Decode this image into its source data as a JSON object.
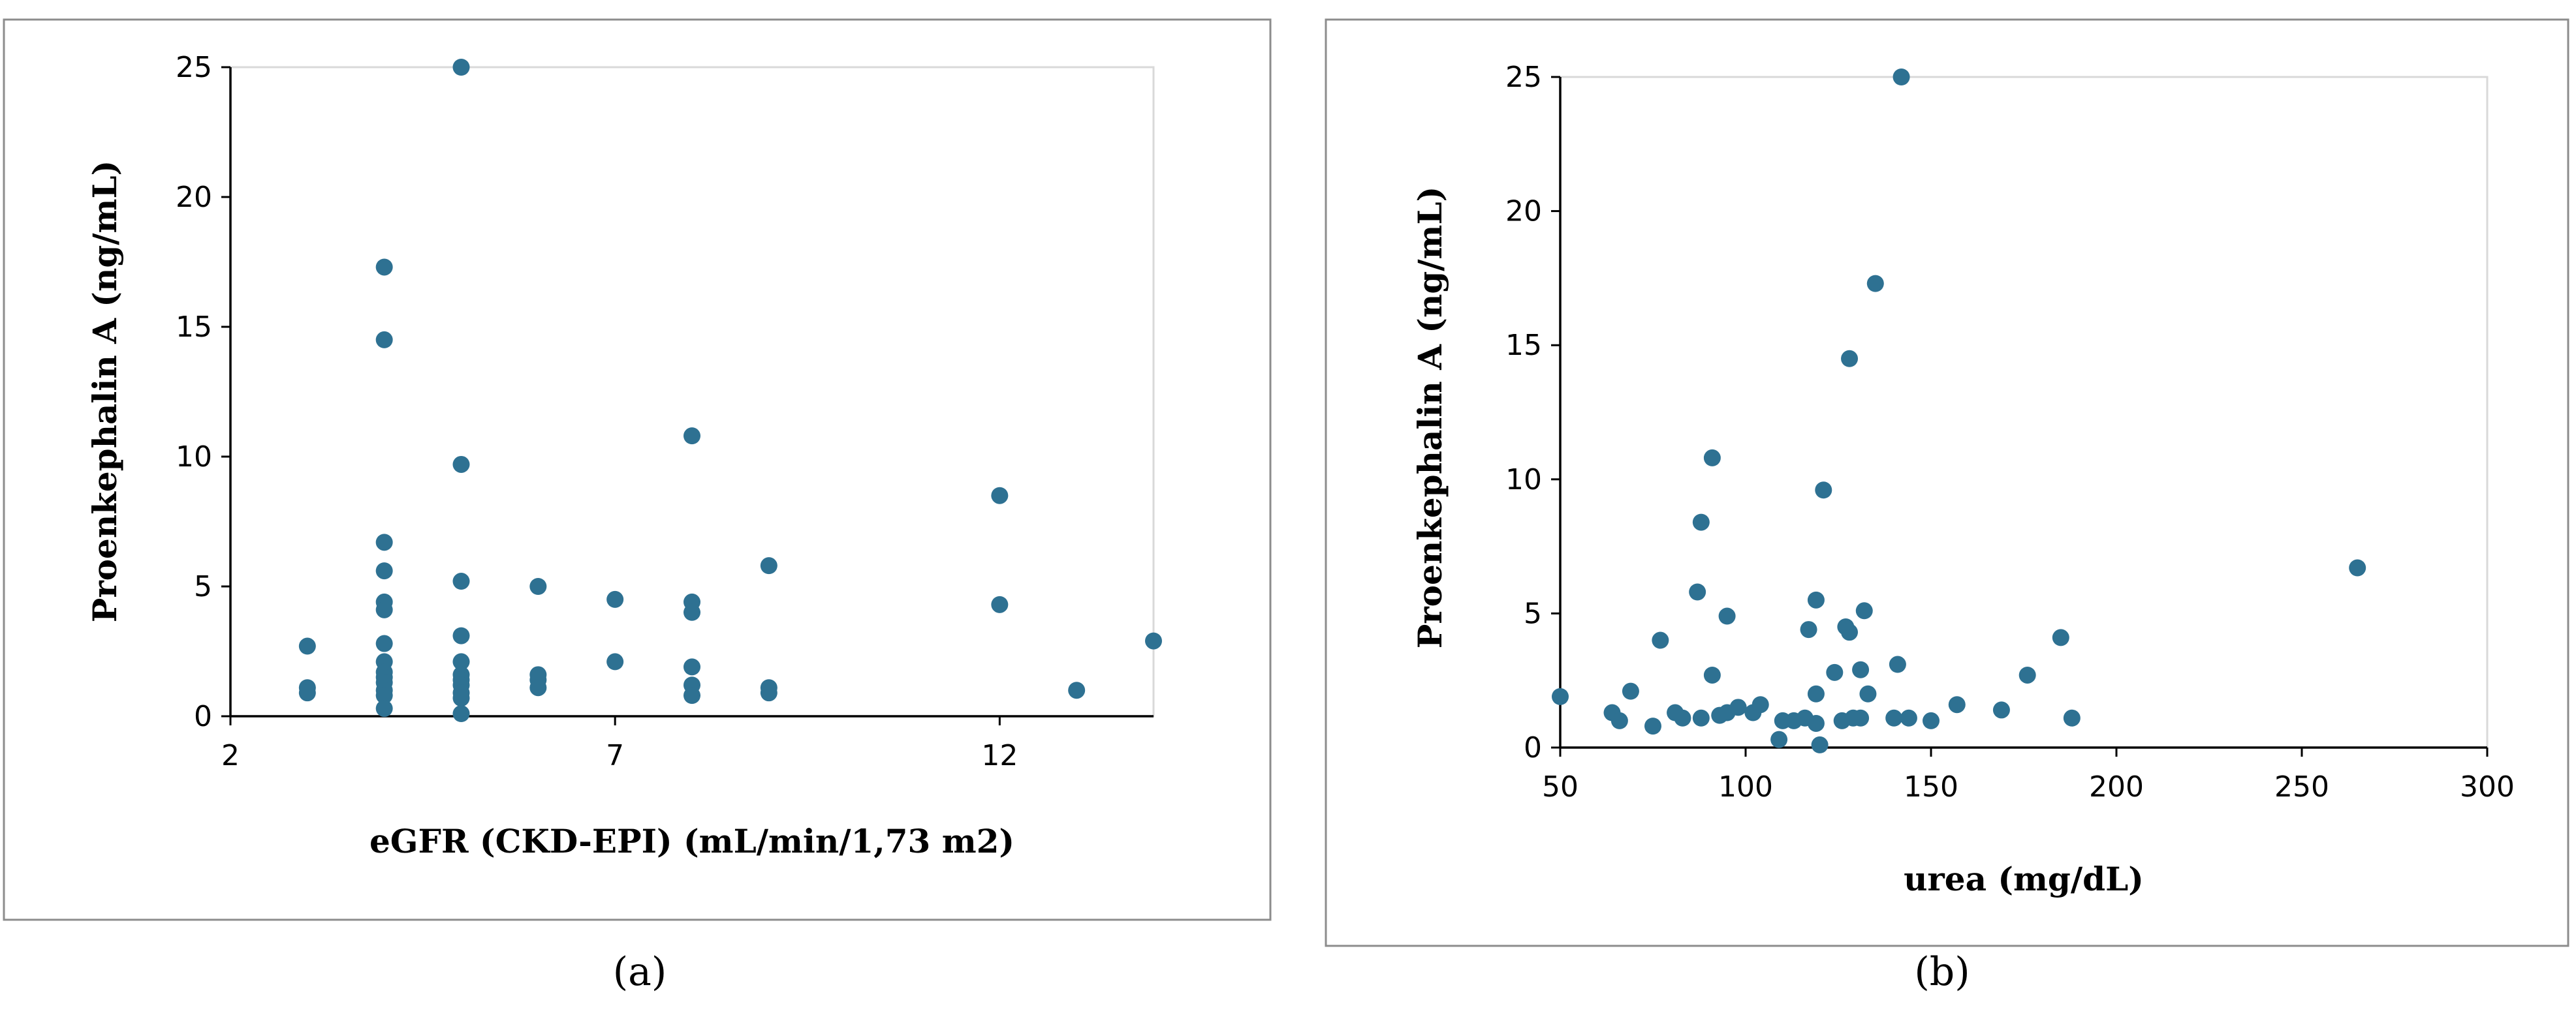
{
  "chart_data": [
    {
      "type": "scatter",
      "panel_label": "(a)",
      "xlabel": "eGFR (CKD-EPI) (mL/min/1,73 m2)",
      "ylabel": "Proenkephalin A (ng/mL)",
      "xlim": [
        2,
        14
      ],
      "ylim": [
        0,
        25
      ],
      "xticks": [
        2,
        7,
        12
      ],
      "yticks": [
        0,
        5,
        10,
        15,
        20,
        25
      ],
      "grid": false,
      "points": [
        {
          "x": 3,
          "y": 2.7
        },
        {
          "x": 3,
          "y": 1.1
        },
        {
          "x": 3,
          "y": 0.9
        },
        {
          "x": 4,
          "y": 17.3
        },
        {
          "x": 4,
          "y": 14.5
        },
        {
          "x": 4,
          "y": 6.7
        },
        {
          "x": 4,
          "y": 5.6
        },
        {
          "x": 4,
          "y": 4.4
        },
        {
          "x": 4,
          "y": 4.1
        },
        {
          "x": 4,
          "y": 2.8
        },
        {
          "x": 4,
          "y": 2.1
        },
        {
          "x": 4,
          "y": 1.7
        },
        {
          "x": 4,
          "y": 1.5
        },
        {
          "x": 4,
          "y": 1.3
        },
        {
          "x": 4,
          "y": 1.0
        },
        {
          "x": 4,
          "y": 0.8
        },
        {
          "x": 4,
          "y": 0.3
        },
        {
          "x": 5,
          "y": 25.0
        },
        {
          "x": 5,
          "y": 9.7
        },
        {
          "x": 5,
          "y": 5.2
        },
        {
          "x": 5,
          "y": 3.1
        },
        {
          "x": 5,
          "y": 2.1
        },
        {
          "x": 5,
          "y": 1.6
        },
        {
          "x": 5,
          "y": 1.4
        },
        {
          "x": 5,
          "y": 1.2
        },
        {
          "x": 5,
          "y": 0.9
        },
        {
          "x": 5,
          "y": 0.7
        },
        {
          "x": 5,
          "y": 0.1
        },
        {
          "x": 6,
          "y": 5.0
        },
        {
          "x": 6,
          "y": 1.6
        },
        {
          "x": 6,
          "y": 1.4
        },
        {
          "x": 6,
          "y": 1.1
        },
        {
          "x": 7,
          "y": 4.5
        },
        {
          "x": 7,
          "y": 2.1
        },
        {
          "x": 8,
          "y": 10.8
        },
        {
          "x": 8,
          "y": 4.4
        },
        {
          "x": 8,
          "y": 4.0
        },
        {
          "x": 8,
          "y": 1.9
        },
        {
          "x": 8,
          "y": 1.2
        },
        {
          "x": 8,
          "y": 0.8
        },
        {
          "x": 9,
          "y": 5.8
        },
        {
          "x": 9,
          "y": 1.1
        },
        {
          "x": 9,
          "y": 0.9
        },
        {
          "x": 12,
          "y": 8.5
        },
        {
          "x": 12,
          "y": 4.3
        },
        {
          "x": 13,
          "y": 1.0
        },
        {
          "x": 14,
          "y": 2.9
        }
      ]
    },
    {
      "type": "scatter",
      "panel_label": "(b)",
      "xlabel": "urea (mg/dL)",
      "ylabel": "Proenkephalin A (ng/mL)",
      "xlim": [
        50,
        300
      ],
      "ylim": [
        0,
        25
      ],
      "xticks": [
        50,
        100,
        150,
        200,
        250,
        300
      ],
      "yticks": [
        0,
        5,
        10,
        15,
        20,
        25
      ],
      "grid": false,
      "points": [
        {
          "x": 50,
          "y": 1.9
        },
        {
          "x": 64,
          "y": 1.3
        },
        {
          "x": 66,
          "y": 1.0
        },
        {
          "x": 69,
          "y": 2.1
        },
        {
          "x": 75,
          "y": 0.8
        },
        {
          "x": 77,
          "y": 4.0
        },
        {
          "x": 81,
          "y": 1.3
        },
        {
          "x": 83,
          "y": 1.1
        },
        {
          "x": 87,
          "y": 5.8
        },
        {
          "x": 88,
          "y": 8.4
        },
        {
          "x": 88,
          "y": 1.1
        },
        {
          "x": 91,
          "y": 10.8
        },
        {
          "x": 91,
          "y": 2.7
        },
        {
          "x": 93,
          "y": 1.2
        },
        {
          "x": 95,
          "y": 4.9
        },
        {
          "x": 95,
          "y": 1.3
        },
        {
          "x": 98,
          "y": 1.5
        },
        {
          "x": 102,
          "y": 1.3
        },
        {
          "x": 104,
          "y": 1.6
        },
        {
          "x": 109,
          "y": 0.3
        },
        {
          "x": 110,
          "y": 1.0
        },
        {
          "x": 113,
          "y": 1.0
        },
        {
          "x": 116,
          "y": 1.1
        },
        {
          "x": 117,
          "y": 4.4
        },
        {
          "x": 119,
          "y": 5.5
        },
        {
          "x": 119,
          "y": 2.0
        },
        {
          "x": 119,
          "y": 0.9
        },
        {
          "x": 120,
          "y": 0.1
        },
        {
          "x": 121,
          "y": 9.6
        },
        {
          "x": 124,
          "y": 2.8
        },
        {
          "x": 126,
          "y": 1.0
        },
        {
          "x": 127,
          "y": 4.5
        },
        {
          "x": 128,
          "y": 14.5
        },
        {
          "x": 128,
          "y": 4.3
        },
        {
          "x": 129,
          "y": 1.1
        },
        {
          "x": 131,
          "y": 2.9
        },
        {
          "x": 131,
          "y": 1.1
        },
        {
          "x": 132,
          "y": 5.1
        },
        {
          "x": 133,
          "y": 2.0
        },
        {
          "x": 135,
          "y": 17.3
        },
        {
          "x": 140,
          "y": 1.1
        },
        {
          "x": 141,
          "y": 3.1
        },
        {
          "x": 142,
          "y": 25.0
        },
        {
          "x": 144,
          "y": 1.1
        },
        {
          "x": 150,
          "y": 1.0
        },
        {
          "x": 157,
          "y": 1.6
        },
        {
          "x": 169,
          "y": 1.4
        },
        {
          "x": 176,
          "y": 2.7
        },
        {
          "x": 185,
          "y": 4.1
        },
        {
          "x": 188,
          "y": 1.1
        },
        {
          "x": 265,
          "y": 6.7
        }
      ]
    }
  ]
}
